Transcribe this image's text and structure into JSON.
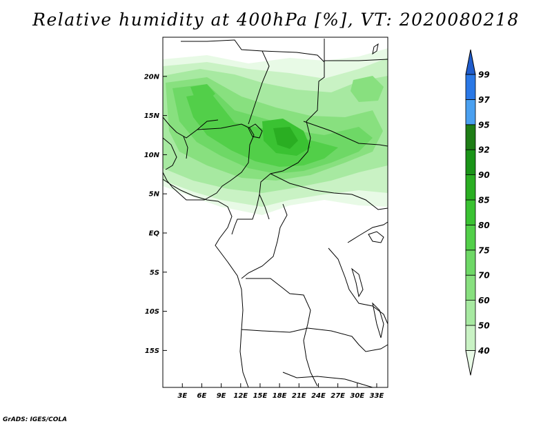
{
  "title": "Relative humidity at 400hPa [%], VT: 2020080218",
  "credit": "GrADS: IGES/COLA",
  "map": {
    "lat_labels": [
      "20N",
      "15N",
      "10N",
      "5N",
      "EQ",
      "5S",
      "10S",
      "15S"
    ],
    "lat_values": [
      20,
      15,
      10,
      5,
      0,
      -5,
      -10,
      -15
    ],
    "lon_labels": [
      "3E",
      "6E",
      "9E",
      "12E",
      "15E",
      "18E",
      "21E",
      "24E",
      "27E",
      "30E",
      "33E"
    ],
    "lon_values": [
      3,
      6,
      9,
      12,
      15,
      18,
      21,
      24,
      27,
      30,
      33
    ]
  },
  "colorbar": {
    "levels": [
      "40",
      "50",
      "60",
      "70",
      "75",
      "80",
      "85",
      "90",
      "92",
      "95",
      "97",
      "99"
    ],
    "colors": [
      "#e8fae6",
      "#c9f2c4",
      "#a7e9a1",
      "#88e07f",
      "#6ed866",
      "#52cf49",
      "#3ac232",
      "#2aae22",
      "#1a9418",
      "#1e7d16",
      "#4aa0f0",
      "#2a78e6",
      "#1f5ccc"
    ]
  }
}
